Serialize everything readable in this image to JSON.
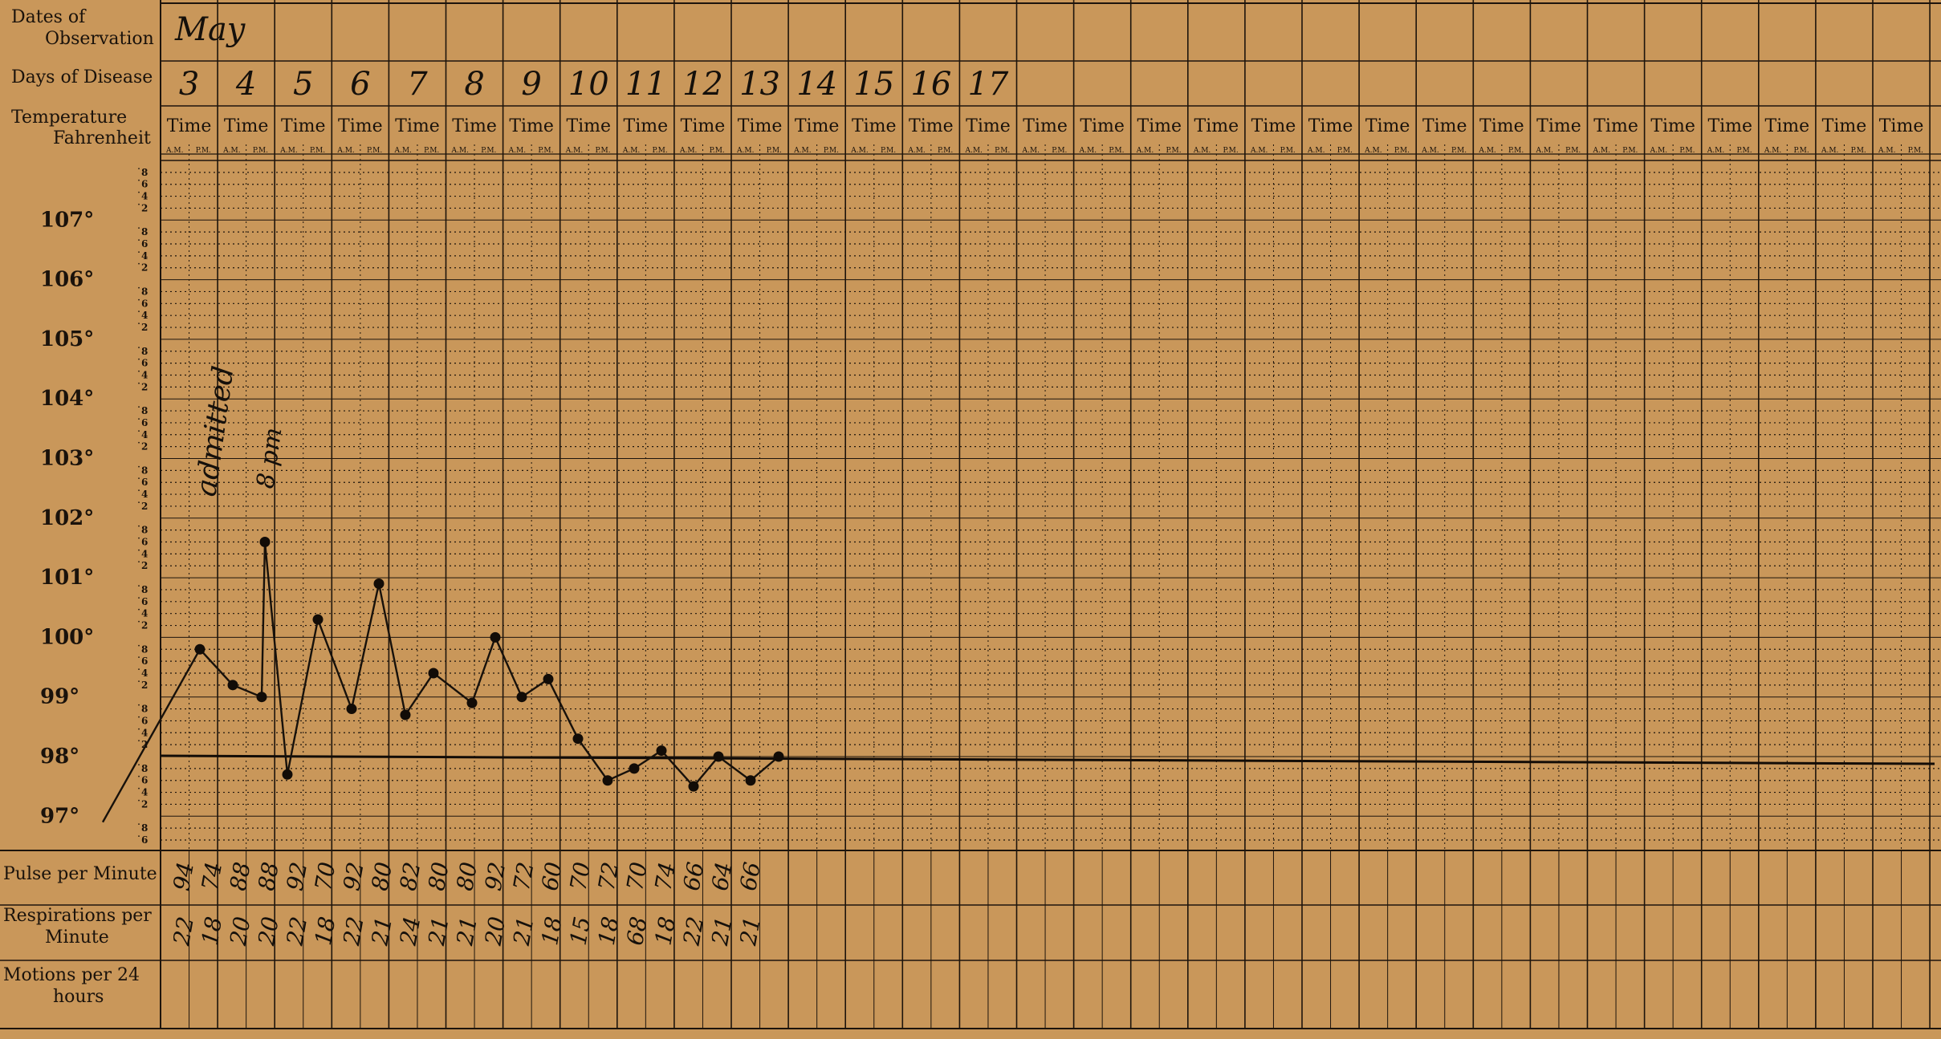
{
  "labels": {
    "dates": "Dates of\nObservation",
    "days": "Days of Disease",
    "temperature": "Temperature\nFahrenheit",
    "pulse": "Pulse per Minute",
    "respirations": "Respirations per\nMinute",
    "motions": "Motions per 24\nhours",
    "time": "Time",
    "am": "A.M.",
    "pm": "P.M."
  },
  "degree_labels": [
    "107°",
    "106°",
    "105°",
    "104°",
    "103°",
    "102°",
    "101°",
    "100°",
    "99°",
    "98°",
    "97°"
  ],
  "tenth_marks": [
    "8",
    "6",
    "4",
    "2"
  ],
  "month": "May",
  "days": [
    "3",
    "4",
    "5",
    "6",
    "7",
    "8",
    "9",
    "10",
    "11",
    "12",
    "13",
    "14",
    "15",
    "16",
    "17"
  ],
  "annotations": {
    "admitted": "admitted",
    "eight_pm": "8 pm"
  },
  "pulse_values": [
    "94",
    "74",
    "88",
    "88",
    "92",
    "70",
    "92",
    "80",
    "82",
    "80",
    "80",
    "92",
    "72",
    "60",
    "70",
    "72",
    "70",
    "74",
    "66",
    "64",
    "66"
  ],
  "respiration_values": [
    "22",
    "18",
    "20",
    "20",
    "22",
    "18",
    "22",
    "21",
    "24",
    "21",
    "21",
    "20",
    "21",
    "18",
    "15",
    "18",
    "68",
    "18",
    "22",
    "21",
    "21"
  ],
  "chart_data": {
    "type": "line",
    "title": "",
    "ylabel": "Temperature Fahrenheit",
    "ylim": [
      96.6,
      108.0
    ],
    "normal_line": 98.0,
    "series": [
      {
        "x": [
          "May 3 A.M.",
          "May 3 P.M.",
          "May 4 A.M.",
          "May 4 P.M.",
          "May 4 8 pm",
          "May 5 A.M.",
          "May 5 P.M.",
          "May 6 A.M.",
          "May 6 P.M.",
          "May 7 A.M.",
          "May 7 P.M.",
          "May 8 A.M.",
          "May 8 P.M.",
          "May 9 A.M.",
          "May 9 P.M.",
          "May 10 A.M.",
          "May 10 P.M.",
          "May 11 A.M.",
          "May 11 P.M.",
          "May 12 A.M.",
          "May 12 P.M.",
          "May 13 A.M.",
          "May 13 P.M."
        ],
        "values": [
          96.9,
          99.8,
          99.2,
          99.0,
          101.6,
          97.7,
          100.3,
          98.8,
          100.9,
          98.7,
          99.4,
          98.9,
          100.0,
          99.0,
          99.3,
          98.3,
          97.6,
          97.8,
          98.1,
          97.5,
          98.0,
          97.6,
          98.0
        ]
      }
    ]
  }
}
